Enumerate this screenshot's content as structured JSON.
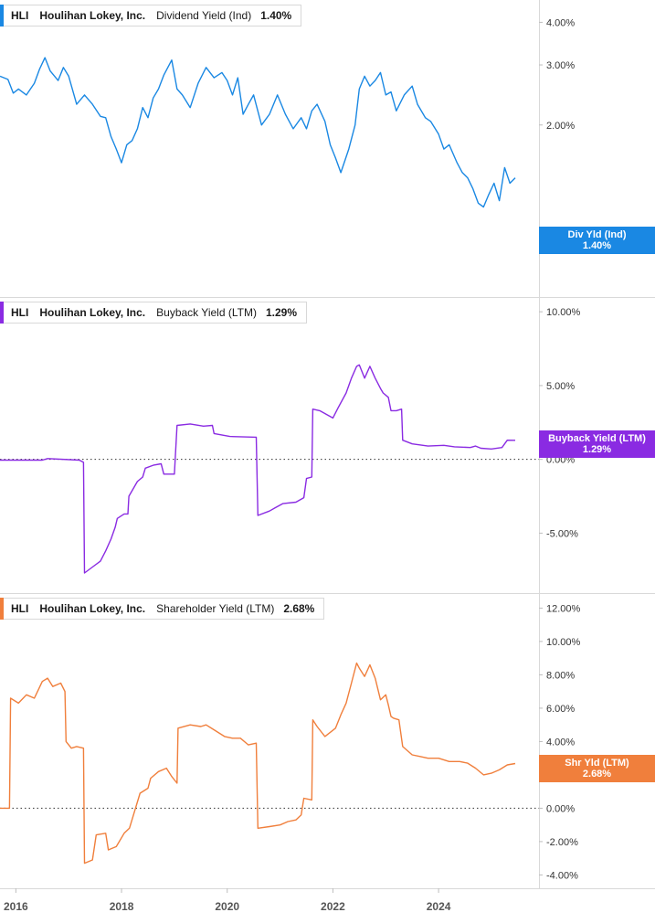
{
  "chart_data": [
    {
      "type": "line",
      "ticker": "HLI",
      "company": "Houlihan Lokey, Inc.",
      "metric": "Dividend Yield (Ind)",
      "value_label": "1.40%",
      "badge_title": "Div Yld (Ind)",
      "badge_value": "1.40%",
      "color": "#1a88e3",
      "ylim": [
        0.63,
        4.65
      ],
      "log_scale": true,
      "yticks": [
        4,
        3,
        2
      ],
      "ytick_labels": [
        "4.00%",
        "3.00%",
        "2.00%"
      ],
      "zero_line": false,
      "series": [
        {
          "name": "Dividend Yield (Ind)",
          "points": [
            [
              2015.7,
              2.78
            ],
            [
              2015.85,
              2.72
            ],
            [
              2015.95,
              2.48
            ],
            [
              2016.05,
              2.55
            ],
            [
              2016.2,
              2.45
            ],
            [
              2016.35,
              2.65
            ],
            [
              2016.45,
              2.92
            ],
            [
              2016.55,
              3.15
            ],
            [
              2016.65,
              2.88
            ],
            [
              2016.8,
              2.7
            ],
            [
              2016.9,
              2.95
            ],
            [
              2017.0,
              2.78
            ],
            [
              2017.15,
              2.3
            ],
            [
              2017.3,
              2.45
            ],
            [
              2017.45,
              2.3
            ],
            [
              2017.6,
              2.12
            ],
            [
              2017.7,
              2.1
            ],
            [
              2017.8,
              1.85
            ],
            [
              2017.9,
              1.7
            ],
            [
              2018.0,
              1.55
            ],
            [
              2018.1,
              1.75
            ],
            [
              2018.2,
              1.8
            ],
            [
              2018.3,
              1.95
            ],
            [
              2018.4,
              2.25
            ],
            [
              2018.5,
              2.1
            ],
            [
              2018.6,
              2.4
            ],
            [
              2018.7,
              2.55
            ],
            [
              2018.8,
              2.8
            ],
            [
              2018.95,
              3.1
            ],
            [
              2019.05,
              2.55
            ],
            [
              2019.15,
              2.45
            ],
            [
              2019.3,
              2.25
            ],
            [
              2019.45,
              2.65
            ],
            [
              2019.6,
              2.95
            ],
            [
              2019.75,
              2.75
            ],
            [
              2019.9,
              2.85
            ],
            [
              2020.0,
              2.7
            ],
            [
              2020.1,
              2.45
            ],
            [
              2020.2,
              2.75
            ],
            [
              2020.3,
              2.15
            ],
            [
              2020.4,
              2.3
            ],
            [
              2020.5,
              2.45
            ],
            [
              2020.65,
              2.0
            ],
            [
              2020.8,
              2.15
            ],
            [
              2020.95,
              2.45
            ],
            [
              2021.1,
              2.15
            ],
            [
              2021.25,
              1.95
            ],
            [
              2021.4,
              2.1
            ],
            [
              2021.5,
              1.95
            ],
            [
              2021.6,
              2.2
            ],
            [
              2021.7,
              2.3
            ],
            [
              2021.85,
              2.05
            ],
            [
              2021.95,
              1.75
            ],
            [
              2022.05,
              1.6
            ],
            [
              2022.15,
              1.45
            ],
            [
              2022.3,
              1.7
            ],
            [
              2022.42,
              2.0
            ],
            [
              2022.5,
              2.55
            ],
            [
              2022.6,
              2.78
            ],
            [
              2022.7,
              2.6
            ],
            [
              2022.8,
              2.7
            ],
            [
              2022.9,
              2.85
            ],
            [
              2023.0,
              2.45
            ],
            [
              2023.1,
              2.5
            ],
            [
              2023.2,
              2.2
            ],
            [
              2023.35,
              2.45
            ],
            [
              2023.5,
              2.6
            ],
            [
              2023.6,
              2.3
            ],
            [
              2023.75,
              2.1
            ],
            [
              2023.85,
              2.05
            ],
            [
              2024.0,
              1.88
            ],
            [
              2024.1,
              1.7
            ],
            [
              2024.2,
              1.75
            ],
            [
              2024.35,
              1.55
            ],
            [
              2024.45,
              1.45
            ],
            [
              2024.55,
              1.4
            ],
            [
              2024.65,
              1.3
            ],
            [
              2024.75,
              1.18
            ],
            [
              2024.85,
              1.15
            ],
            [
              2024.95,
              1.25
            ],
            [
              2025.05,
              1.35
            ],
            [
              2025.15,
              1.2
            ],
            [
              2025.25,
              1.5
            ],
            [
              2025.35,
              1.35
            ],
            [
              2025.45,
              1.4
            ]
          ]
        }
      ]
    },
    {
      "type": "line",
      "ticker": "HLI",
      "company": "Houlihan Lokey, Inc.",
      "metric": "Buyback Yield (LTM)",
      "value_label": "1.29%",
      "badge_title": "Buyback Yield (LTM)",
      "badge_value": "1.29%",
      "color": "#8a2be2",
      "ylim": [
        -9,
        11
      ],
      "log_scale": false,
      "yticks": [
        10,
        5,
        0,
        -5
      ],
      "ytick_labels": [
        "10.00%",
        "5.00%",
        "0.00%",
        "-5.00%"
      ],
      "zero_line": true,
      "series": [
        {
          "name": "Buyback Yield (LTM)",
          "points": [
            [
              2015.7,
              -0.05
            ],
            [
              2016.5,
              -0.05
            ],
            [
              2016.6,
              0.05
            ],
            [
              2017.2,
              -0.05
            ],
            [
              2017.28,
              -0.2
            ],
            [
              2017.3,
              -7.7
            ],
            [
              2017.45,
              -7.3
            ],
            [
              2017.6,
              -6.9
            ],
            [
              2017.7,
              -6.2
            ],
            [
              2017.8,
              -5.4
            ],
            [
              2017.88,
              -4.6
            ],
            [
              2017.92,
              -4.0
            ],
            [
              2018.05,
              -3.7
            ],
            [
              2018.12,
              -3.7
            ],
            [
              2018.14,
              -2.5
            ],
            [
              2018.3,
              -1.5
            ],
            [
              2018.4,
              -1.2
            ],
            [
              2018.45,
              -0.6
            ],
            [
              2018.6,
              -0.4
            ],
            [
              2018.75,
              -0.3
            ],
            [
              2018.8,
              -1.0
            ],
            [
              2019.0,
              -1.0
            ],
            [
              2019.05,
              2.3
            ],
            [
              2019.3,
              2.4
            ],
            [
              2019.55,
              2.25
            ],
            [
              2019.72,
              2.3
            ],
            [
              2019.75,
              1.75
            ],
            [
              2020.05,
              1.55
            ],
            [
              2020.55,
              1.5
            ],
            [
              2020.58,
              -3.8
            ],
            [
              2020.8,
              -3.5
            ],
            [
              2020.9,
              -3.3
            ],
            [
              2021.05,
              -3.0
            ],
            [
              2021.3,
              -2.9
            ],
            [
              2021.45,
              -2.6
            ],
            [
              2021.5,
              -1.3
            ],
            [
              2021.6,
              -1.2
            ],
            [
              2021.62,
              3.4
            ],
            [
              2021.75,
              3.3
            ],
            [
              2022.0,
              2.8
            ],
            [
              2022.1,
              3.5
            ],
            [
              2022.25,
              4.5
            ],
            [
              2022.35,
              5.5
            ],
            [
              2022.45,
              6.3
            ],
            [
              2022.5,
              6.4
            ],
            [
              2022.6,
              5.5
            ],
            [
              2022.7,
              6.3
            ],
            [
              2022.8,
              5.5
            ],
            [
              2022.9,
              4.8
            ],
            [
              2022.95,
              4.5
            ],
            [
              2023.05,
              4.2
            ],
            [
              2023.1,
              3.3
            ],
            [
              2023.2,
              3.3
            ],
            [
              2023.3,
              3.4
            ],
            [
              2023.32,
              1.3
            ],
            [
              2023.5,
              1.05
            ],
            [
              2023.8,
              0.9
            ],
            [
              2024.1,
              0.95
            ],
            [
              2024.3,
              0.85
            ],
            [
              2024.6,
              0.8
            ],
            [
              2024.7,
              0.9
            ],
            [
              2024.8,
              0.75
            ],
            [
              2025.0,
              0.7
            ],
            [
              2025.2,
              0.8
            ],
            [
              2025.3,
              1.3
            ],
            [
              2025.45,
              1.29
            ]
          ]
        }
      ]
    },
    {
      "type": "line",
      "ticker": "HLI",
      "company": "Houlihan Lokey, Inc.",
      "metric": "Shareholder Yield (LTM)",
      "value_label": "2.68%",
      "badge_title": "Shr Yld (LTM)",
      "badge_value": "2.68%",
      "color": "#f07f3c",
      "ylim": [
        -4.8,
        12.9
      ],
      "log_scale": false,
      "yticks": [
        12,
        10,
        8,
        6,
        4,
        2,
        0,
        -2,
        -4
      ],
      "ytick_labels": [
        "12.00%",
        "10.00%",
        "8.00%",
        "6.00%",
        "4.00%",
        "2.00%",
        "0.00%",
        "-2.00%",
        "-4.00%"
      ],
      "zero_line": true,
      "series": [
        {
          "name": "Shareholder Yield (LTM)",
          "points": [
            [
              2015.7,
              0.0
            ],
            [
              2015.88,
              0.0
            ],
            [
              2015.9,
              6.6
            ],
            [
              2016.05,
              6.3
            ],
            [
              2016.2,
              6.8
            ],
            [
              2016.35,
              6.6
            ],
            [
              2016.5,
              7.6
            ],
            [
              2016.6,
              7.8
            ],
            [
              2016.7,
              7.3
            ],
            [
              2016.85,
              7.5
            ],
            [
              2016.93,
              7.0
            ],
            [
              2016.95,
              4.0
            ],
            [
              2017.05,
              3.6
            ],
            [
              2017.15,
              3.7
            ],
            [
              2017.28,
              3.6
            ],
            [
              2017.3,
              -3.3
            ],
            [
              2017.45,
              -3.1
            ],
            [
              2017.52,
              -1.6
            ],
            [
              2017.7,
              -1.5
            ],
            [
              2017.75,
              -2.5
            ],
            [
              2017.9,
              -2.3
            ],
            [
              2018.05,
              -1.5
            ],
            [
              2018.15,
              -1.2
            ],
            [
              2018.35,
              0.9
            ],
            [
              2018.5,
              1.2
            ],
            [
              2018.55,
              1.8
            ],
            [
              2018.7,
              2.2
            ],
            [
              2018.85,
              2.4
            ],
            [
              2018.95,
              1.9
            ],
            [
              2019.05,
              1.5
            ],
            [
              2019.07,
              4.8
            ],
            [
              2019.3,
              5.0
            ],
            [
              2019.5,
              4.9
            ],
            [
              2019.6,
              5.0
            ],
            [
              2019.75,
              4.7
            ],
            [
              2019.95,
              4.3
            ],
            [
              2020.1,
              4.2
            ],
            [
              2020.25,
              4.2
            ],
            [
              2020.4,
              3.8
            ],
            [
              2020.55,
              3.9
            ],
            [
              2020.58,
              -1.2
            ],
            [
              2020.8,
              -1.1
            ],
            [
              2021.0,
              -1.0
            ],
            [
              2021.15,
              -0.8
            ],
            [
              2021.3,
              -0.7
            ],
            [
              2021.4,
              -0.4
            ],
            [
              2021.45,
              0.6
            ],
            [
              2021.6,
              0.5
            ],
            [
              2021.62,
              5.3
            ],
            [
              2021.7,
              4.9
            ],
            [
              2021.85,
              4.3
            ],
            [
              2022.05,
              4.8
            ],
            [
              2022.15,
              5.6
            ],
            [
              2022.25,
              6.3
            ],
            [
              2022.35,
              7.5
            ],
            [
              2022.45,
              8.7
            ],
            [
              2022.5,
              8.4
            ],
            [
              2022.6,
              7.9
            ],
            [
              2022.7,
              8.6
            ],
            [
              2022.8,
              7.8
            ],
            [
              2022.9,
              6.5
            ],
            [
              2023.0,
              6.8
            ],
            [
              2023.05,
              6.2
            ],
            [
              2023.1,
              5.5
            ],
            [
              2023.15,
              5.4
            ],
            [
              2023.25,
              5.3
            ],
            [
              2023.32,
              3.7
            ],
            [
              2023.5,
              3.2
            ],
            [
              2023.65,
              3.1
            ],
            [
              2023.8,
              3.0
            ],
            [
              2024.0,
              3.0
            ],
            [
              2024.2,
              2.8
            ],
            [
              2024.4,
              2.8
            ],
            [
              2024.55,
              2.7
            ],
            [
              2024.7,
              2.4
            ],
            [
              2024.85,
              2.0
            ],
            [
              2025.0,
              2.1
            ],
            [
              2025.15,
              2.3
            ],
            [
              2025.3,
              2.6
            ],
            [
              2025.45,
              2.68
            ]
          ]
        }
      ]
    }
  ],
  "x_axis": {
    "xlim": [
      2015.7,
      2025.9
    ],
    "ticks": [
      2016,
      2018,
      2020,
      2022,
      2024
    ],
    "tick_labels": [
      "2016",
      "2018",
      "2020",
      "2022",
      "2024"
    ]
  }
}
